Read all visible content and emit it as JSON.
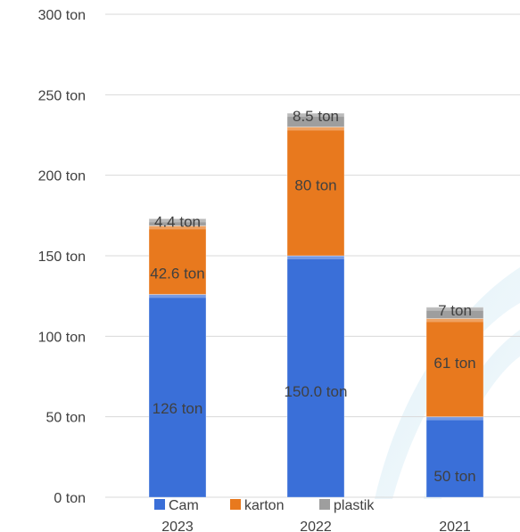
{
  "chart_data": {
    "type": "bar",
    "stacked": true,
    "categories": [
      "2023",
      "2022",
      "2021"
    ],
    "series": [
      {
        "name": "Cam",
        "values": [
          126,
          150,
          50
        ],
        "labels": [
          "126 ton",
          "150.0 ton",
          "50 ton"
        ],
        "color": "#3a6fd8"
      },
      {
        "name": "karton",
        "values": [
          42.6,
          80,
          61
        ],
        "labels": [
          "42.6 ton",
          "80 ton",
          "61 ton"
        ],
        "color": "#e8791e"
      },
      {
        "name": "plastik",
        "values": [
          4.4,
          8.5,
          7
        ],
        "labels": [
          "4.4 ton",
          "8.5 ton",
          "7 ton"
        ],
        "color": "#9e9e9e"
      }
    ],
    "ylim": [
      0,
      300
    ],
    "yticks": [
      0,
      50,
      100,
      150,
      200,
      250,
      300
    ],
    "ytick_labels": [
      "0 ton",
      "50 ton",
      "100 ton",
      "150 ton",
      "200 ton",
      "250 ton",
      "300 ton"
    ],
    "grid": true,
    "legend": "bottom"
  }
}
